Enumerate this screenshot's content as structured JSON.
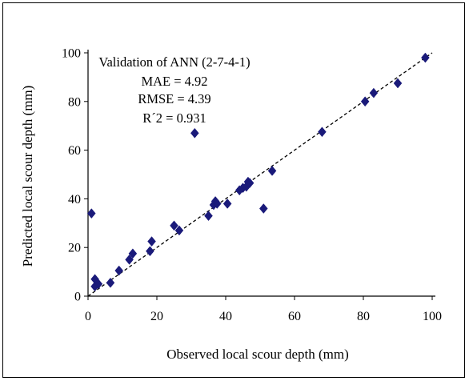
{
  "chart_data": {
    "type": "scatter",
    "title": "",
    "xlabel": "Observed local scour depth (mm)",
    "ylabel": "Predicted local scour depth (mm)",
    "xlim": [
      0,
      100
    ],
    "ylim": [
      0,
      100
    ],
    "xticks": [
      0,
      20,
      40,
      60,
      80,
      100
    ],
    "yticks": [
      0,
      20,
      40,
      60,
      80,
      100
    ],
    "grid": false,
    "marker_color": "#1a1a7a",
    "trendline": {
      "style": "dashed",
      "from": [
        0,
        0
      ],
      "to": [
        100,
        100
      ]
    },
    "annotation": [
      "Validation of ANN (2-7-4-1)",
      "MAE = 4.92",
      "RMSE = 4.39",
      "R´2 = 0.931"
    ],
    "points": [
      [
        1,
        34
      ],
      [
        2,
        7
      ],
      [
        2,
        4
      ],
      [
        3,
        5
      ],
      [
        6.5,
        5.5
      ],
      [
        9,
        10.5
      ],
      [
        12,
        15
      ],
      [
        13,
        17.5
      ],
      [
        18,
        18.5
      ],
      [
        18.5,
        22.5
      ],
      [
        25,
        29
      ],
      [
        26.5,
        27
      ],
      [
        31,
        67
      ],
      [
        35,
        33
      ],
      [
        36.5,
        37.5
      ],
      [
        37,
        39
      ],
      [
        37.5,
        38
      ],
      [
        40.5,
        38
      ],
      [
        44,
        43.5
      ],
      [
        45,
        44.5
      ],
      [
        46,
        45
      ],
      [
        46.5,
        47
      ],
      [
        47,
        46.5
      ],
      [
        51,
        36
      ],
      [
        53.5,
        51.5
      ],
      [
        68,
        67.5
      ],
      [
        80.5,
        80
      ],
      [
        83,
        83.5
      ],
      [
        90,
        87.5
      ],
      [
        98,
        98
      ]
    ]
  }
}
